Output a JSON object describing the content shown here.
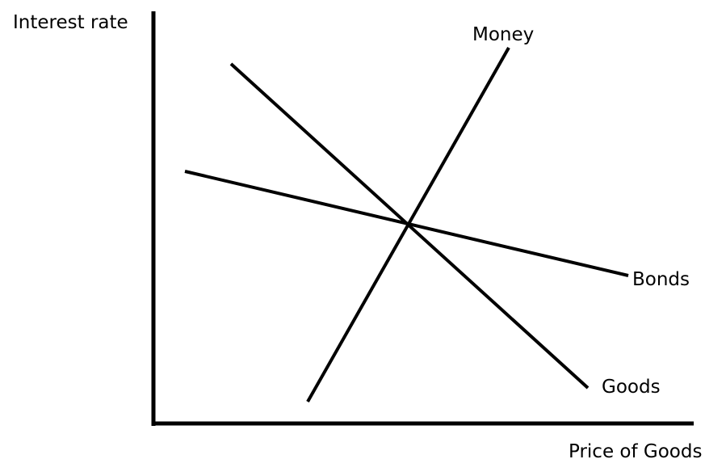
{
  "diagram": {
    "axes": {
      "y_label": "Interest rate",
      "x_label": "Price of Goods"
    },
    "curves": [
      {
        "id": "money",
        "label": "Money",
        "slope": "upward"
      },
      {
        "id": "bonds",
        "label": "Bonds",
        "slope": "downward"
      },
      {
        "id": "goods",
        "label": "Goods",
        "slope": "downward"
      }
    ]
  },
  "colors": {
    "line": "#000000",
    "background": "#ffffff"
  }
}
